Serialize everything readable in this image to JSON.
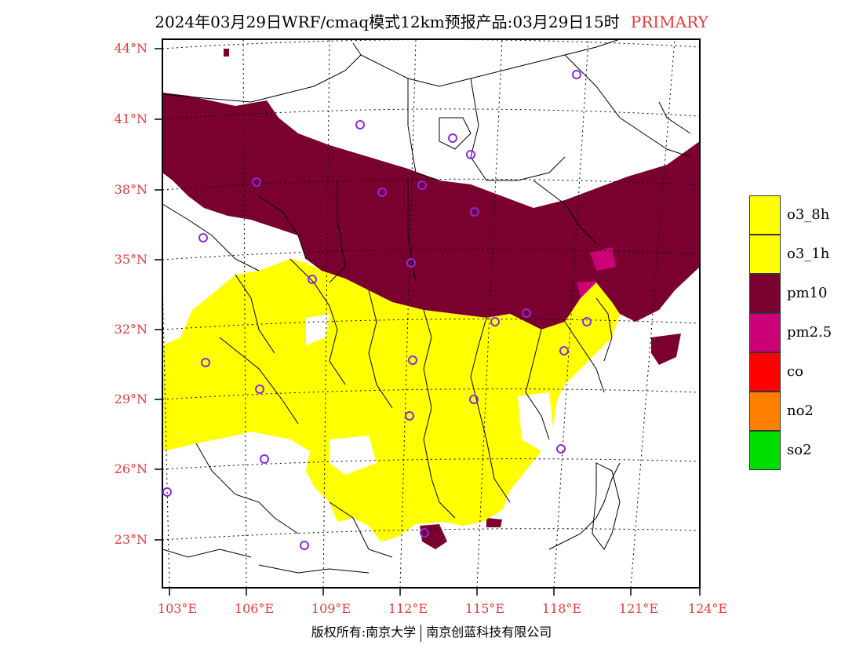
{
  "title": {
    "main": "2024年03月29日WRF/cmaq模式12km预报产品:03月29日15时",
    "tag": "PRIMARY",
    "tag_color": "#e83a3a"
  },
  "map": {
    "lat_labels": [
      "44°N",
      "41°N",
      "38°N",
      "35°N",
      "32°N",
      "29°N",
      "26°N",
      "23°N"
    ],
    "lon_labels": [
      "103°E",
      "106°E",
      "109°E",
      "112°E",
      "115°E",
      "118°E",
      "121°E",
      "124°E"
    ]
  },
  "legend": [
    {
      "label": "o3_8h",
      "color": "#ffff00"
    },
    {
      "label": "o3_1h",
      "color": "#ffff00"
    },
    {
      "label": "pm10",
      "color": "#7a0030"
    },
    {
      "label": "pm2.5",
      "color": "#cc0077"
    },
    {
      "label": "co",
      "color": "#ff0000"
    },
    {
      "label": "no2",
      "color": "#ff7f00"
    },
    {
      "label": "so2",
      "color": "#00dd00"
    }
  ],
  "colors": {
    "pm10": "#7a0030",
    "pm25": "#cc0077",
    "o3": "#ffff00",
    "border": "#000000",
    "station": "#8a2be2"
  },
  "copyright": {
    "left": "版权所有:南京大学",
    "right": "南京创蓝科技有限公司"
  }
}
